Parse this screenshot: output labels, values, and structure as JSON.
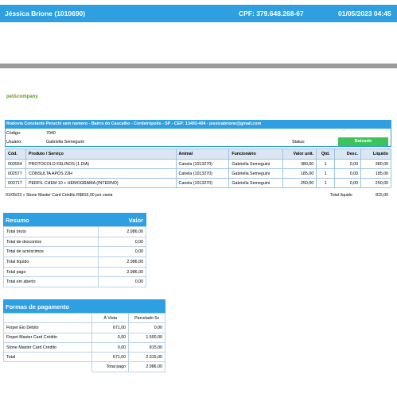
{
  "header": {
    "patient": "Jéssica Brione (1010690)",
    "cpf": "CPF: 379.648.268-67",
    "datetime": "01/05/2023 04:45"
  },
  "logo": {
    "part1": "pet",
    "amp": "&",
    "part2": "company"
  },
  "address": "Rodovia Constante Peruchi sem numero - Bairro do Cascalho - Cordeirópolis - SP - CEP: 13492-404 - jessicabrione@gmail.com",
  "info": {
    "codigo_label": "Código:",
    "codigo_value": "7040",
    "usuario_label": "Usuário:",
    "usuario_value": "Gabriella Semeguini",
    "status_label": "Status:",
    "status_value": "Baixado"
  },
  "items": {
    "headers": [
      "Cód.",
      "Produto / Serviço",
      "Animal",
      "Funcionário",
      "Valor unit.",
      "Qtd.",
      "Desc.",
      "Líquido"
    ],
    "rows": [
      [
        "003554",
        "PROTOCOLO FELINOS (1 DIA)",
        "Canela (1013270)",
        "Gabriella Semeguini",
        "380,00",
        "1",
        "0,00",
        "380,00"
      ],
      [
        "002577",
        "CONSULTA APÓS 22H",
        "Canela (1013270)",
        "Gabriella Semeguini",
        "185,00",
        "1",
        "0,00",
        "185,00"
      ],
      [
        "003717",
        "PERFIL CHEM 10 + HEMOGRAMA (INTERNO)",
        "Canela (1013270)",
        "Gabriella Semeguini",
        "250,00",
        "1",
        "0,00",
        "250,00"
      ]
    ],
    "payment_note": "01/05/23 » Stone Master Card Crédito R$815,00 por vania",
    "total_label": "Total líquido",
    "total_value": "815,00"
  },
  "resumo": {
    "title": "Resumo",
    "value_header": "Valor",
    "rows": [
      [
        "Total bruto",
        "2.986,00"
      ],
      [
        "Total de descontos",
        "0,00"
      ],
      [
        "Total de acréscimos",
        "0,00"
      ],
      [
        "Total líquido",
        "2.986,00"
      ],
      [
        "Total pago",
        "2.986,00"
      ],
      [
        "Total em aberto",
        "0,00"
      ]
    ]
  },
  "formas": {
    "title": "Formas de pagamento",
    "col_avista": "À Vista",
    "col_parcelado": "Parcelado 5x",
    "rows": [
      [
        "Finpet Elo Débito",
        "671,00",
        "0,00"
      ],
      [
        "Finpet Master Card Crédito",
        "0,00",
        "1.500,00"
      ],
      [
        "Stone Master Card Crédito",
        "0,00",
        "815,00"
      ],
      [
        "Total",
        "671,00",
        "2.315,00"
      ]
    ],
    "total_pago_label": "Total pago",
    "total_pago_value": "2.986,00"
  }
}
